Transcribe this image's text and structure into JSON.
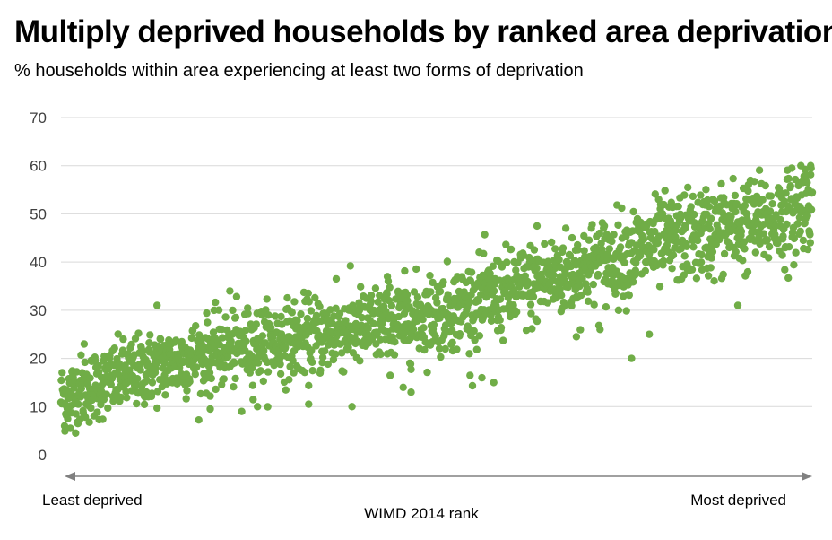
{
  "title": "Multiply deprived households by ranked area deprivation",
  "subtitle": "% households within area experiencing at least two forms of deprivation",
  "chart_data": {
    "type": "scatter",
    "title": "Multiply deprived households by ranked area deprivation",
    "subtitle": "% households within area experiencing at least two forms of deprivation",
    "xlabel": "WIMD 2014 rank",
    "x_left_label": "Least deprived",
    "x_right_label": "Most deprived",
    "ylabel": "",
    "xlim": [
      1,
      1909
    ],
    "ylim": [
      0,
      70
    ],
    "yticks": [
      0,
      10,
      20,
      30,
      40,
      50,
      60,
      70
    ],
    "grid": true,
    "legend": "none",
    "marker_color": "#70ad47",
    "gridline_color": "#d9d9d9",
    "axis_arrow_color": "#808080",
    "n_points": 1909,
    "trend_estimate": {
      "start": 12,
      "end": 50
    },
    "spread_sd": 4.2,
    "notable_points": [
      {
        "x": 10,
        "y": 6
      },
      {
        "x": 25,
        "y": 5.5
      },
      {
        "x": 60,
        "y": 23
      },
      {
        "x": 245,
        "y": 31
      },
      {
        "x": 430,
        "y": 34
      },
      {
        "x": 380,
        "y": 9.5
      },
      {
        "x": 460,
        "y": 9
      },
      {
        "x": 500,
        "y": 10
      },
      {
        "x": 630,
        "y": 10.5
      },
      {
        "x": 700,
        "y": 36.5
      },
      {
        "x": 740,
        "y": 10
      },
      {
        "x": 830,
        "y": 37
      },
      {
        "x": 870,
        "y": 14
      },
      {
        "x": 890,
        "y": 13
      },
      {
        "x": 1040,
        "y": 16.5
      },
      {
        "x": 1070,
        "y": 16
      },
      {
        "x": 1100,
        "y": 15
      },
      {
        "x": 1210,
        "y": 47.5
      },
      {
        "x": 1310,
        "y": 24.5
      },
      {
        "x": 1370,
        "y": 26
      },
      {
        "x": 1450,
        "y": 20
      },
      {
        "x": 1495,
        "y": 25
      },
      {
        "x": 1720,
        "y": 31
      },
      {
        "x": 1880,
        "y": 60
      },
      {
        "x": 1905,
        "y": 60
      },
      {
        "x": 1895,
        "y": 58
      }
    ],
    "series": [
      {
        "name": "",
        "points": []
      }
    ]
  }
}
